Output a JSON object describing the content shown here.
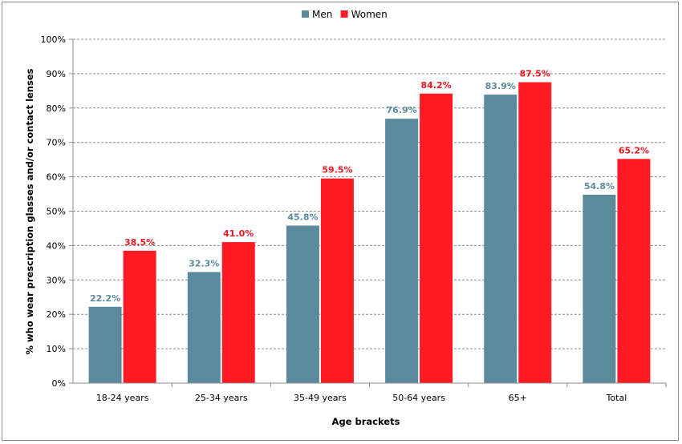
{
  "chart_data": {
    "type": "bar",
    "categories": [
      "18-24 years",
      "25-34 years",
      "35-49 years",
      "50-64 years",
      "65+",
      "Total"
    ],
    "series": [
      {
        "name": "Men",
        "color": "#5b8a9c",
        "label_color": "#5b8a9c",
        "values": [
          22.2,
          32.3,
          45.8,
          76.9,
          83.9,
          54.8
        ],
        "labels": [
          "22.2%",
          "32.3%",
          "45.8%",
          "76.9%",
          "83.9%",
          "54.8%"
        ]
      },
      {
        "name": "Women",
        "color": "#ff1a24",
        "label_color": "#e8171f",
        "values": [
          38.5,
          41.0,
          59.5,
          84.2,
          87.5,
          65.2
        ],
        "labels": [
          "38.5%",
          "41.0%",
          "59.5%",
          "84.2%",
          "87.5%",
          "65.2%"
        ]
      }
    ],
    "xlabel": "Age brackets",
    "ylabel": "% who wear prescription glasses and/or contact lenses",
    "ylim": [
      0,
      100
    ],
    "yticks": [
      "0%",
      "10%",
      "20%",
      "30%",
      "40%",
      "50%",
      "60%",
      "70%",
      "80%",
      "90%",
      "100%"
    ],
    "grid": true,
    "legend_position": "top-center"
  }
}
